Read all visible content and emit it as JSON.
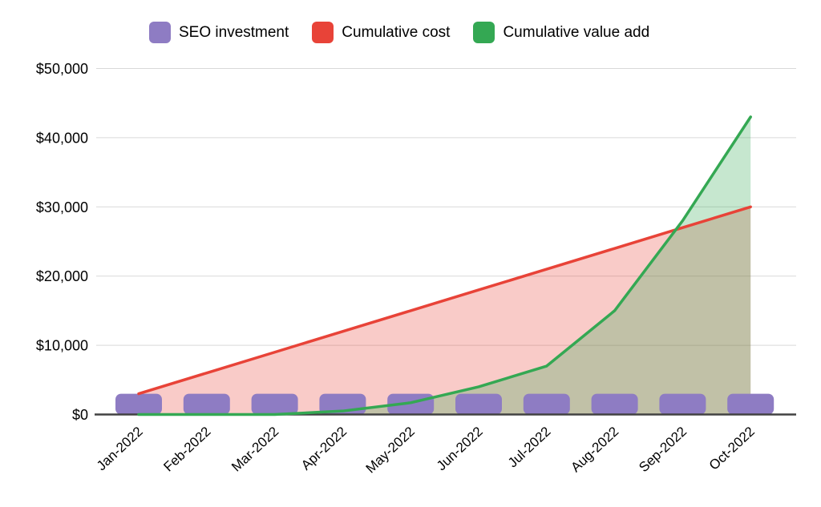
{
  "legend": {
    "items": [
      {
        "label": "SEO investment",
        "color": "#8e7cc3"
      },
      {
        "label": "Cumulative cost",
        "color": "#e84338"
      },
      {
        "label": "Cumulative value add",
        "color": "#34a853"
      }
    ]
  },
  "chart_data": {
    "type": "bar",
    "subtype": "combo-bar-with-area-lines",
    "title": "",
    "xlabel": "",
    "ylabel": "",
    "categories": [
      "Jan-2022",
      "Feb-2022",
      "Mar-2022",
      "Apr-2022",
      "May-2022",
      "Jun-2022",
      "Jul-2022",
      "Aug-2022",
      "Sep-2022",
      "Oct-2022"
    ],
    "series": [
      {
        "name": "SEO investment",
        "render": "bar",
        "color": "#8e7cc3",
        "values": [
          3000,
          3000,
          3000,
          3000,
          3000,
          3000,
          3000,
          3000,
          3000,
          3000
        ]
      },
      {
        "name": "Cumulative cost",
        "render": "area-line",
        "color": "#e84338",
        "fill_opacity": 0.28,
        "values": [
          3000,
          6000,
          9000,
          12000,
          15000,
          18000,
          21000,
          24000,
          27000,
          30000
        ]
      },
      {
        "name": "Cumulative value add",
        "render": "area-line",
        "color": "#34a853",
        "fill_opacity": 0.28,
        "values": [
          0,
          0,
          0,
          500,
          1700,
          4000,
          7000,
          15000,
          28000,
          43000
        ]
      }
    ],
    "ylim": [
      0,
      50000
    ],
    "ytick_step": 10000,
    "ytick_labels": [
      "$0",
      "$10,000",
      "$20,000",
      "$30,000",
      "$40,000",
      "$50,000"
    ],
    "grid": true,
    "gridline_color": "#d9d9d9",
    "axis_color": "#424242",
    "legend_position": "top",
    "x_label_rotation": -43
  }
}
